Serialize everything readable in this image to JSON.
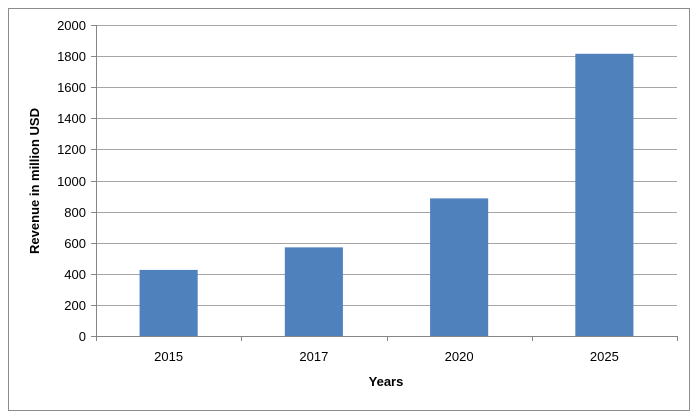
{
  "chart_data": {
    "type": "bar",
    "title": "",
    "xlabel": "Years",
    "ylabel": "Revenue in million USD",
    "categories": [
      "2015",
      "2017",
      "2020",
      "2025"
    ],
    "values": [
      425,
      570,
      885,
      1815
    ],
    "ylim": [
      0,
      2000
    ],
    "yticks": [
      0,
      200,
      400,
      600,
      800,
      1000,
      1200,
      1400,
      1600,
      1800,
      2000
    ],
    "ytick_labels": [
      "0",
      "200",
      "400",
      "600",
      "800",
      "1000",
      "1200",
      "1400",
      "1600",
      "1800",
      "2000"
    ],
    "grid": true,
    "legend": "none",
    "bar_color": "#4f81bd",
    "grid_color": "#a6a6a6"
  }
}
